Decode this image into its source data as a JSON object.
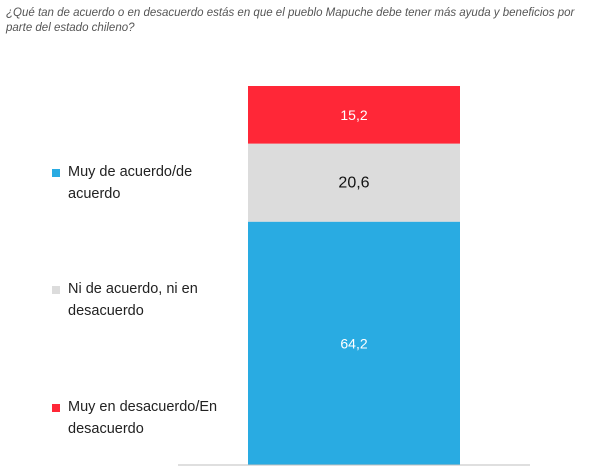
{
  "question": "¿Qué tan de acuerdo o en desacuerdo estás en que el pueblo Mapuche debe tener más ayuda y beneficios por parte del estado chileno?",
  "chart_data": {
    "type": "bar",
    "stacked": true,
    "categories": [
      ""
    ],
    "series": [
      {
        "name": "Muy de acuerdo/de acuerdo",
        "values": [
          64.2
        ],
        "label": "64,2",
        "color": "#29ABE2",
        "label_color": "#ffffff"
      },
      {
        "name": "Ni de acuerdo, ni en desacuerdo",
        "values": [
          20.6
        ],
        "label": "20,6",
        "color": "#DCDCDC",
        "label_color": "#111111"
      },
      {
        "name": "Muy en desacuerdo/En desacuerdo",
        "values": [
          15.2
        ],
        "label": "15,2",
        "color": "#FF2737",
        "label_color": "#ffffff"
      }
    ],
    "ylim": [
      0,
      100
    ],
    "legend_position": "left"
  }
}
